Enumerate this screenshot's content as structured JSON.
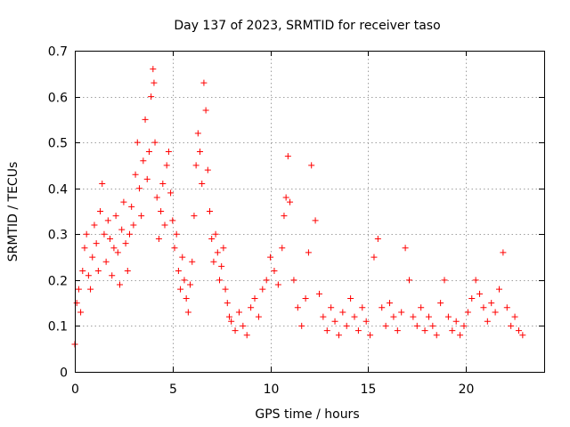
{
  "chart_data": {
    "type": "scatter",
    "title": "Day 137 of 2023, SRMTID for receiver taso",
    "xlabel": "GPS time / hours",
    "ylabel": "SRMTID / TECUs",
    "xlim": [
      0,
      24
    ],
    "ylim": [
      0,
      0.7
    ],
    "x_ticks": [
      0,
      5,
      10,
      15,
      20
    ],
    "x_tick_labels": [
      "0",
      "5",
      "10",
      "15",
      "20"
    ],
    "y_ticks": [
      0,
      0.1,
      0.2,
      0.3,
      0.4,
      0.5,
      0.6,
      0.7
    ],
    "y_tick_labels": [
      "0",
      "0.1",
      "0.2",
      "0.3",
      "0.4",
      "0.5",
      "0.6",
      "0.7"
    ],
    "grid": true,
    "marker": "+",
    "marker_color": "#ff0000",
    "series": [
      {
        "name": "SRMTID",
        "x": [
          0.0,
          0.1,
          0.2,
          0.3,
          0.4,
          0.5,
          0.6,
          0.7,
          0.8,
          0.9,
          1.0,
          1.1,
          1.2,
          1.3,
          1.4,
          1.5,
          1.6,
          1.7,
          1.8,
          1.9,
          2.0,
          2.1,
          2.2,
          2.3,
          2.4,
          2.5,
          2.6,
          2.7,
          2.8,
          2.9,
          3.0,
          3.1,
          3.2,
          3.3,
          3.4,
          3.5,
          3.6,
          3.7,
          3.8,
          3.9,
          4.0,
          4.05,
          4.1,
          4.2,
          4.3,
          4.4,
          4.5,
          4.6,
          4.7,
          4.8,
          4.9,
          5.0,
          5.1,
          5.2,
          5.3,
          5.4,
          5.5,
          5.6,
          5.7,
          5.8,
          5.9,
          6.0,
          6.1,
          6.2,
          6.3,
          6.4,
          6.5,
          6.6,
          6.7,
          6.8,
          6.9,
          7.0,
          7.1,
          7.2,
          7.3,
          7.4,
          7.5,
          7.6,
          7.7,
          7.8,
          7.9,
          8.0,
          8.2,
          8.4,
          8.6,
          8.8,
          9.0,
          9.2,
          9.4,
          9.6,
          9.8,
          10.0,
          10.2,
          10.4,
          10.6,
          10.7,
          10.8,
          10.9,
          11.0,
          11.2,
          11.4,
          11.6,
          11.8,
          11.95,
          12.1,
          12.3,
          12.5,
          12.7,
          12.9,
          13.1,
          13.3,
          13.5,
          13.7,
          13.9,
          14.1,
          14.3,
          14.5,
          14.7,
          14.9,
          15.1,
          15.3,
          15.5,
          15.7,
          15.9,
          16.1,
          16.3,
          16.5,
          16.7,
          16.9,
          17.1,
          17.3,
          17.5,
          17.7,
          17.9,
          18.1,
          18.3,
          18.5,
          18.7,
          18.9,
          19.1,
          19.3,
          19.5,
          19.7,
          19.9,
          20.1,
          20.3,
          20.5,
          20.7,
          20.9,
          21.1,
          21.3,
          21.5,
          21.7,
          21.9,
          22.1,
          22.3,
          22.5,
          22.7,
          22.9
        ],
        "y": [
          0.06,
          0.15,
          0.18,
          0.13,
          0.22,
          0.27,
          0.3,
          0.21,
          0.18,
          0.25,
          0.32,
          0.28,
          0.22,
          0.35,
          0.41,
          0.3,
          0.24,
          0.33,
          0.29,
          0.21,
          0.27,
          0.34,
          0.26,
          0.19,
          0.31,
          0.37,
          0.28,
          0.22,
          0.3,
          0.36,
          0.32,
          0.43,
          0.5,
          0.4,
          0.34,
          0.46,
          0.55,
          0.42,
          0.48,
          0.6,
          0.66,
          0.63,
          0.5,
          0.38,
          0.29,
          0.35,
          0.41,
          0.32,
          0.45,
          0.48,
          0.39,
          0.33,
          0.27,
          0.3,
          0.22,
          0.18,
          0.25,
          0.2,
          0.16,
          0.13,
          0.19,
          0.24,
          0.34,
          0.45,
          0.52,
          0.48,
          0.41,
          0.63,
          0.57,
          0.44,
          0.35,
          0.29,
          0.24,
          0.3,
          0.26,
          0.2,
          0.23,
          0.27,
          0.18,
          0.15,
          0.12,
          0.11,
          0.09,
          0.13,
          0.1,
          0.08,
          0.14,
          0.16,
          0.12,
          0.18,
          0.2,
          0.25,
          0.22,
          0.19,
          0.27,
          0.34,
          0.38,
          0.47,
          0.37,
          0.2,
          0.14,
          0.1,
          0.16,
          0.26,
          0.45,
          0.33,
          0.17,
          0.12,
          0.09,
          0.14,
          0.11,
          0.08,
          0.13,
          0.1,
          0.16,
          0.12,
          0.09,
          0.14,
          0.11,
          0.08,
          0.25,
          0.29,
          0.14,
          0.1,
          0.15,
          0.12,
          0.09,
          0.13,
          0.27,
          0.2,
          0.12,
          0.1,
          0.14,
          0.09,
          0.12,
          0.1,
          0.08,
          0.15,
          0.2,
          0.12,
          0.09,
          0.11,
          0.08,
          0.1,
          0.13,
          0.16,
          0.2,
          0.17,
          0.14,
          0.11,
          0.15,
          0.13,
          0.18,
          0.26,
          0.14,
          0.1,
          0.12,
          0.09,
          0.08
        ]
      }
    ]
  }
}
